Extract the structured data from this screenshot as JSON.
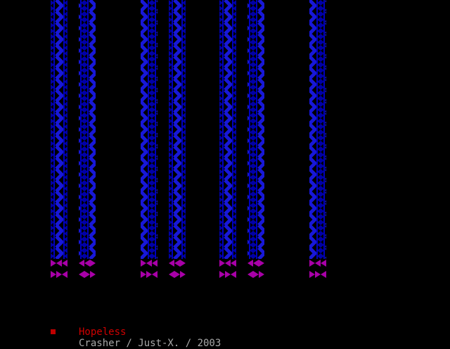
{
  "title": "Hopeless",
  "credits": "Crasher / Just-X. / 2003"
}
